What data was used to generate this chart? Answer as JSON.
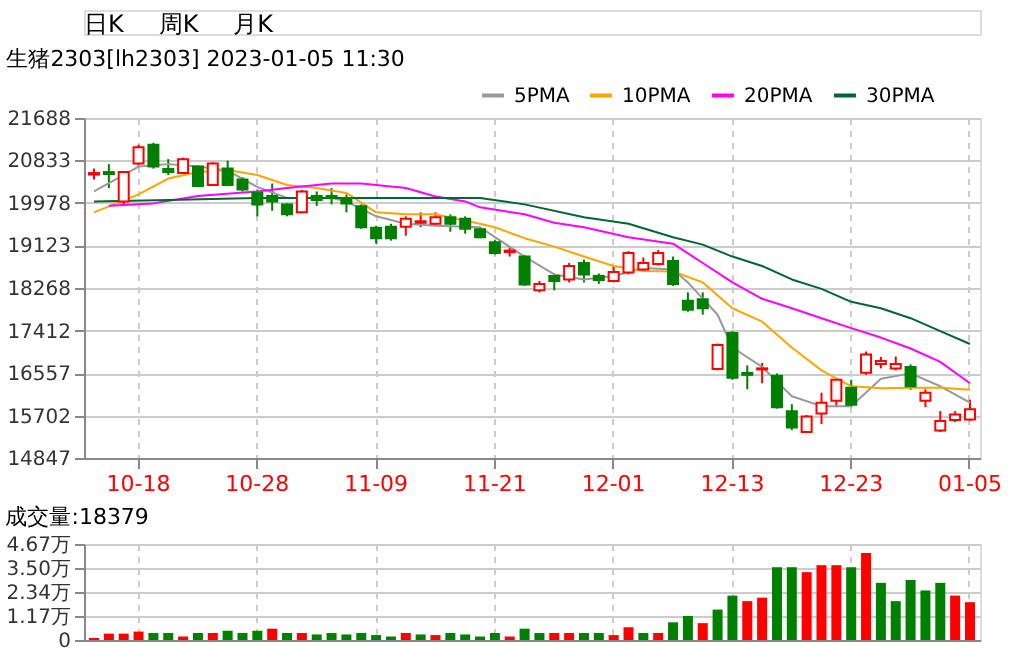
{
  "chart_data": [
    {
      "type": "candlestick",
      "title": "生猪2303[lh2303] 2023-01-05 11:30",
      "annotations": [
        "日K",
        "周K",
        "月K"
      ],
      "categories": [
        null,
        null,
        null,
        "10-18",
        null,
        null,
        null,
        null,
        null,
        null,
        null,
        "10-28",
        null,
        null,
        null,
        null,
        null,
        null,
        null,
        "11-09",
        null,
        null,
        null,
        null,
        null,
        null,
        null,
        "11-21",
        null,
        null,
        null,
        null,
        null,
        null,
        null,
        "12-01",
        null,
        null,
        null,
        null,
        null,
        null,
        null,
        "12-13",
        null,
        null,
        null,
        null,
        null,
        null,
        null,
        "12-23",
        null,
        null,
        null,
        null,
        null,
        null,
        null,
        "01-05"
      ],
      "ohlc": [
        [
          20550,
          20670,
          20450,
          20580
        ],
        [
          20600,
          20760,
          20280,
          20560
        ],
        [
          20010,
          20600,
          19950,
          20600
        ],
        [
          20770,
          21150,
          20730,
          21100
        ],
        [
          21150,
          21190,
          20670,
          20710
        ],
        [
          20660,
          20860,
          20540,
          20600
        ],
        [
          20580,
          20890,
          20560,
          20860
        ],
        [
          20710,
          20730,
          20300,
          20320
        ],
        [
          20340,
          20800,
          20320,
          20770
        ],
        [
          20670,
          20830,
          20320,
          20340
        ],
        [
          20450,
          20500,
          20210,
          20250
        ],
        [
          20180,
          20250,
          19710,
          19950
        ],
        [
          20120,
          20370,
          19820,
          20010
        ],
        [
          19950,
          19970,
          19710,
          19750
        ],
        [
          19790,
          20240,
          19770,
          20210
        ],
        [
          20120,
          20210,
          19920,
          20040
        ],
        [
          20120,
          20280,
          19950,
          20080
        ],
        [
          20080,
          20150,
          19790,
          19970
        ],
        [
          19910,
          19950,
          19460,
          19490
        ],
        [
          19480,
          19520,
          19160,
          19270
        ],
        [
          19500,
          19560,
          19220,
          19270
        ],
        [
          19500,
          19710,
          19320,
          19660
        ],
        [
          19580,
          19790,
          19490,
          19610
        ],
        [
          19560,
          19790,
          19530,
          19690
        ],
        [
          19690,
          19750,
          19400,
          19560
        ],
        [
          19660,
          19710,
          19360,
          19460
        ],
        [
          19450,
          19490,
          19270,
          19290
        ],
        [
          19190,
          19230,
          18940,
          18970
        ],
        [
          18990,
          19100,
          18900,
          19020
        ],
        [
          18900,
          18930,
          18310,
          18340
        ],
        [
          18220,
          18410,
          18180,
          18350
        ],
        [
          18510,
          18560,
          18220,
          18410
        ],
        [
          18440,
          18770,
          18380,
          18710
        ],
        [
          18770,
          18840,
          18380,
          18540
        ],
        [
          18510,
          18560,
          18350,
          18430
        ],
        [
          18410,
          18710,
          18380,
          18590
        ],
        [
          18580,
          19010,
          18540,
          18970
        ],
        [
          18640,
          18880,
          18610,
          18770
        ],
        [
          18750,
          19030,
          18720,
          18970
        ],
        [
          18810,
          18900,
          18310,
          18350
        ],
        [
          18010,
          18180,
          17790,
          17830
        ],
        [
          18040,
          18180,
          17730,
          17860
        ],
        [
          16640,
          17150,
          16610,
          17120
        ],
        [
          17360,
          17400,
          16420,
          16460
        ],
        [
          16560,
          16710,
          16230,
          16520
        ],
        [
          16630,
          16760,
          16350,
          16650
        ],
        [
          16500,
          16550,
          15840,
          15870
        ],
        [
          15790,
          15930,
          15410,
          15460
        ],
        [
          15370,
          15710,
          15370,
          15680
        ],
        [
          15740,
          16160,
          15530,
          15960
        ],
        [
          16000,
          16440,
          15870,
          16420
        ],
        [
          16260,
          16420,
          15870,
          15920
        ],
        [
          16560,
          16990,
          16520,
          16930
        ],
        [
          16740,
          16880,
          16650,
          16800
        ],
        [
          16650,
          16890,
          16610,
          16740
        ],
        [
          16680,
          16730,
          16220,
          16290
        ],
        [
          16000,
          16230,
          15870,
          16160
        ],
        [
          15400,
          15790,
          15370,
          15590
        ],
        [
          15610,
          15790,
          15570,
          15720
        ],
        [
          15620,
          16020,
          15590,
          15830
        ]
      ],
      "colors": [
        "#ff0000",
        "#008000",
        "#ff0000",
        "#ff0000",
        "#008000",
        "#008000",
        "#ff0000",
        "#008000",
        "#ff0000",
        "#008000",
        "#008000",
        "#008000",
        "#008000",
        "#008000",
        "#ff0000",
        "#008000",
        "#008000",
        "#008000",
        "#008000",
        "#008000",
        "#008000",
        "#ff0000",
        "#ff0000",
        "#ff0000",
        "#008000",
        "#008000",
        "#008000",
        "#008000",
        "#ff0000",
        "#008000",
        "#ff0000",
        "#008000",
        "#ff0000",
        "#008000",
        "#008000",
        "#ff0000",
        "#ff0000",
        "#ff0000",
        "#ff0000",
        "#008000",
        "#008000",
        "#008000",
        "#ff0000",
        "#008000",
        "#008000",
        "#ff0000",
        "#008000",
        "#008000",
        "#ff0000",
        "#ff0000",
        "#ff0000",
        "#008000",
        "#ff0000",
        "#ff0000",
        "#ff0000",
        "#008000",
        "#ff0000",
        "#ff0000",
        "#ff0000",
        "#ff0000"
      ],
      "series": [
        {
          "name": "5PMA",
          "type": "line",
          "color": "#999999",
          "values": [
            20210,
            null,
            null,
            20710,
            null,
            20760,
            null,
            20710,
            null,
            20630,
            null,
            20300,
            null,
            20080,
            null,
            null,
            20080,
            20010,
            null,
            19710,
            null,
            19560,
            null,
            19520,
            null,
            null,
            19490,
            19290,
            null,
            18900,
            null,
            18540,
            null,
            18440,
            null,
            18510,
            null,
            18670,
            null,
            18640,
            18380,
            null,
            17730,
            17070,
            null,
            16680,
            null,
            16090,
            null,
            15890,
            null,
            15890,
            null,
            16440,
            null,
            16550,
            null,
            16290,
            null,
            15960
          ]
        },
        {
          "name": "10PMA",
          "type": "line",
          "color": "#ffa500",
          "values": [
            19790,
            null,
            null,
            20150,
            null,
            20470,
            null,
            20600,
            null,
            20640,
            null,
            20540,
            null,
            20340,
            null,
            20280,
            null,
            20180,
            null,
            19790,
            null,
            19750,
            null,
            19750,
            null,
            19620,
            19560,
            19490,
            null,
            19270,
            null,
            19100,
            null,
            18900,
            null,
            18710,
            null,
            18610,
            null,
            18600,
            null,
            18380,
            null,
            17860,
            null,
            17590,
            null,
            17070,
            null,
            16610,
            null,
            16290,
            null,
            16250,
            null,
            16260,
            null,
            16260,
            null,
            16220
          ]
        },
        {
          "name": "20PMA",
          "type": "line",
          "color": "#ff00ff",
          "values": [
            null,
            19920,
            null,
            null,
            19970,
            null,
            null,
            20120,
            null,
            null,
            null,
            20210,
            null,
            20280,
            null,
            null,
            20370,
            null,
            20370,
            null,
            null,
            20280,
            null,
            20110,
            null,
            20010,
            19890,
            null,
            null,
            19750,
            null,
            19580,
            null,
            19490,
            null,
            null,
            19290,
            null,
            null,
            19160,
            null,
            18770,
            null,
            18380,
            null,
            18050,
            null,
            17860,
            null,
            17660,
            null,
            17460,
            null,
            17270,
            null,
            17050,
            null,
            16780,
            null,
            16350
          ]
        },
        {
          "name": "30PMA",
          "type": "line",
          "color": "#006633",
          "values": [
            20010,
            null,
            null,
            null,
            null,
            20040,
            null,
            null,
            null,
            null,
            null,
            20080,
            null,
            null,
            null,
            null,
            null,
            20080,
            null,
            null,
            null,
            null,
            null,
            20080,
            null,
            null,
            20080,
            null,
            null,
            19950,
            null,
            null,
            null,
            19690,
            null,
            null,
            19560,
            null,
            null,
            19290,
            null,
            19140,
            null,
            18900,
            null,
            18710,
            null,
            18440,
            null,
            18250,
            null,
            17990,
            null,
            17860,
            null,
            17660,
            null,
            17400,
            null,
            17140
          ]
        }
      ],
      "ylim": [
        14847,
        21688
      ],
      "yticks": [
        14847,
        15702,
        16557,
        17412,
        18268,
        19123,
        19978,
        20833,
        21688
      ],
      "grid": true,
      "legend": "top right"
    },
    {
      "type": "bar",
      "title": "成交量:18379",
      "tick_labels": "y",
      "values": [
        0.1,
        0.31,
        0.31,
        0.41,
        0.34,
        0.34,
        0.17,
        0.34,
        0.34,
        0.45,
        0.34,
        0.45,
        0.55,
        0.34,
        0.34,
        0.27,
        0.34,
        0.27,
        0.34,
        0.24,
        0.17,
        0.34,
        0.27,
        0.24,
        0.34,
        0.27,
        0.17,
        0.34,
        0.17,
        0.55,
        0.34,
        0.34,
        0.34,
        0.34,
        0.34,
        0.24,
        0.62,
        0.34,
        0.34,
        0.86,
        1.17,
        0.82,
        1.48,
        2.16,
        1.89,
        2.06,
        3.54,
        3.54,
        3.3,
        3.64,
        3.64,
        3.54,
        4.23,
        2.78,
        1.89,
        2.92,
        2.41,
        2.78,
        2.16,
        1.84
      ],
      "colors": [
        "#ff0000",
        "#ff0000",
        "#ff0000",
        "#ff0000",
        "#008000",
        "#008000",
        "#ff0000",
        "#008000",
        "#ff0000",
        "#008000",
        "#008000",
        "#008000",
        "#ff0000",
        "#008000",
        "#ff0000",
        "#008000",
        "#008000",
        "#008000",
        "#008000",
        "#008000",
        "#008000",
        "#ff0000",
        "#008000",
        "#ff0000",
        "#008000",
        "#008000",
        "#008000",
        "#008000",
        "#ff0000",
        "#008000",
        "#008000",
        "#ff0000",
        "#ff0000",
        "#008000",
        "#008000",
        "#ff0000",
        "#ff0000",
        "#008000",
        "#ff0000",
        "#008000",
        "#008000",
        "#ff0000",
        "#008000",
        "#008000",
        "#ff0000",
        "#ff0000",
        "#008000",
        "#008000",
        "#ff0000",
        "#ff0000",
        "#ff0000",
        "#008000",
        "#ff0000",
        "#008000",
        "#008000",
        "#008000",
        "#008000",
        "#008000",
        "#ff0000",
        "#ff0000"
      ],
      "ylim": [
        0,
        4.67
      ],
      "yticks": [
        0,
        {
          "value": 1.17,
          "label": "1.17万"
        },
        {
          "value": 2.34,
          "label": "2.34万"
        },
        {
          "value": 3.5,
          "label": "3.50万"
        },
        {
          "value": 4.67,
          "label": "4.67万"
        }
      ],
      "grid": true
    }
  ]
}
